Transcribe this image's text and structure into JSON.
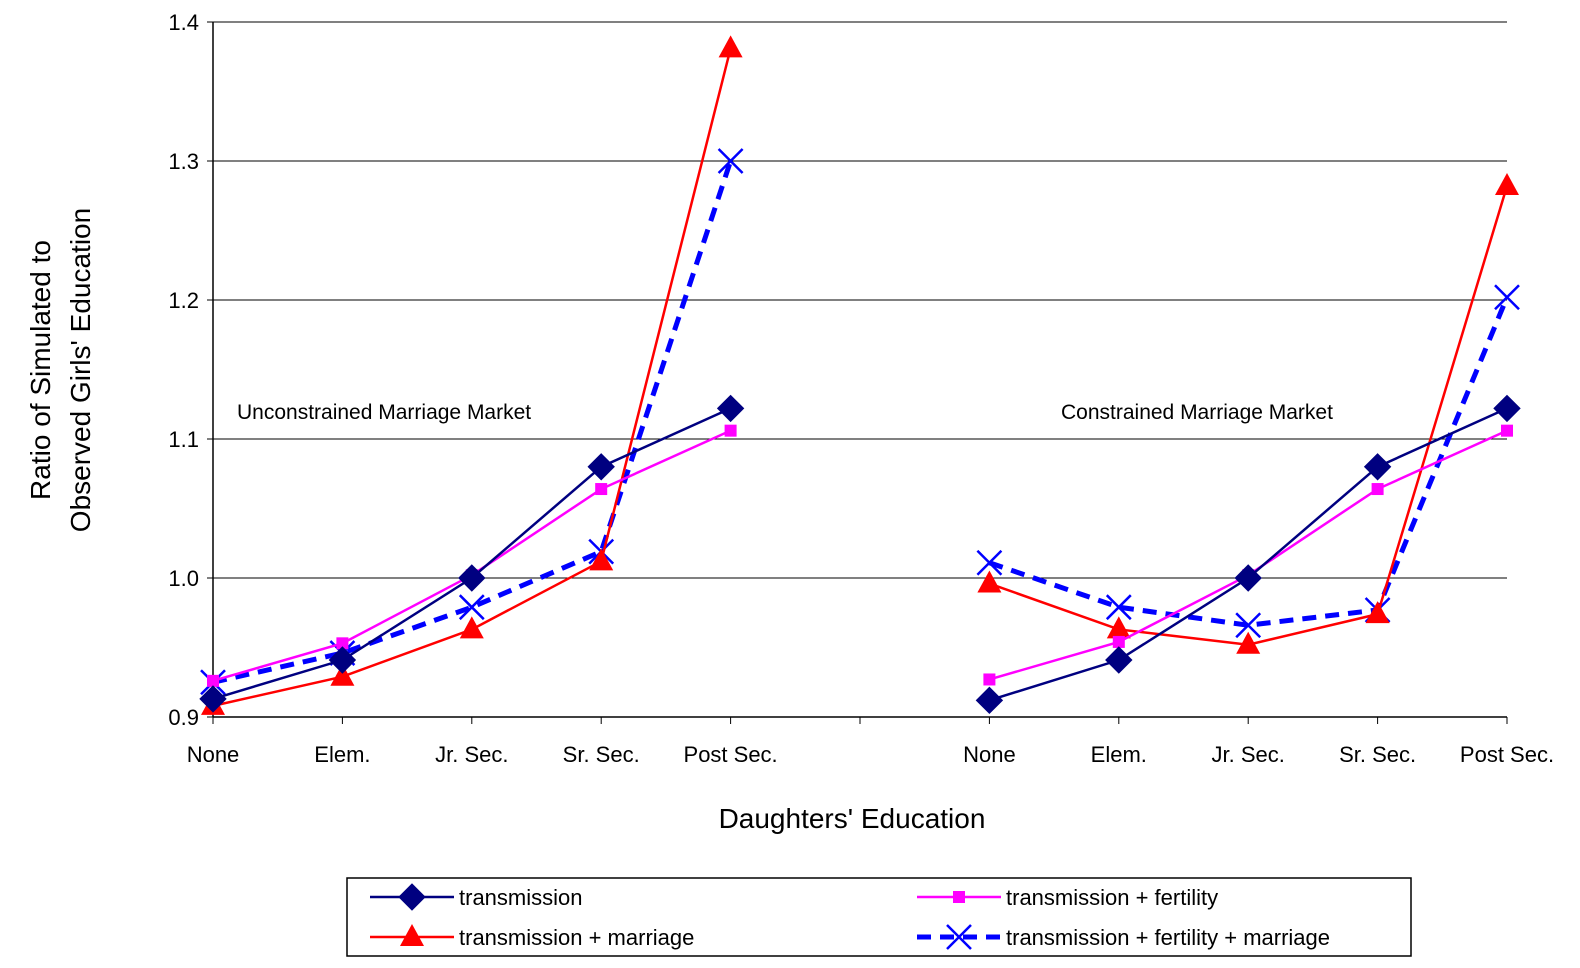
{
  "chart_data": {
    "type": "line",
    "xlabel": "Daughters' Education",
    "ylabel_lines": [
      "Ratio of Simulated to",
      "Observed Girls' Education"
    ],
    "ylim": [
      0.9,
      1.4
    ],
    "y_ticks": [
      "0.9",
      "1.0",
      "1.1",
      "1.2",
      "1.3",
      "1.4"
    ],
    "grid": true,
    "legend_position": "bottom",
    "annotations": [
      "Unconstrained Marriage Market",
      "Constrained Marriage Market"
    ],
    "panels": [
      {
        "name": "Unconstrained Marriage Market",
        "categories": [
          "None",
          "Elem.",
          "Jr. Sec.",
          "Sr. Sec.",
          "Post Sec."
        ],
        "series": [
          {
            "name": "transmission",
            "values": [
              0.913,
              0.941,
              1.0,
              1.08,
              1.122
            ]
          },
          {
            "name": "transmission + fertility",
            "values": [
              0.926,
              0.953,
              1.002,
              1.064,
              1.106
            ]
          },
          {
            "name": "transmission + marriage",
            "values": [
              0.908,
              0.929,
              0.963,
              1.012,
              1.381
            ]
          },
          {
            "name": "transmission + fertility + marriage",
            "values": [
              0.925,
              0.946,
              0.979,
              1.019,
              1.3
            ]
          }
        ]
      },
      {
        "name": "Constrained Marriage Market",
        "categories": [
          "None",
          "Elem.",
          "Jr. Sec.",
          "Sr. Sec.",
          "Post Sec."
        ],
        "series": [
          {
            "name": "transmission",
            "values": [
              0.912,
              0.941,
              1.0,
              1.08,
              1.122
            ]
          },
          {
            "name": "transmission + fertility",
            "values": [
              0.927,
              0.954,
              1.002,
              1.064,
              1.106
            ]
          },
          {
            "name": "transmission + marriage",
            "values": [
              0.996,
              0.963,
              0.952,
              0.974,
              1.282
            ]
          },
          {
            "name": "transmission + fertility + marriage",
            "values": [
              1.011,
              0.979,
              0.966,
              0.977,
              1.202
            ]
          }
        ]
      }
    ],
    "series_styles": [
      {
        "name": "transmission",
        "color": "#000080",
        "marker": "diamond",
        "dash": "solid"
      },
      {
        "name": "transmission + fertility",
        "color": "#ff00ff",
        "marker": "square",
        "dash": "solid"
      },
      {
        "name": "transmission + marriage",
        "color": "#ff0000",
        "marker": "triangle",
        "dash": "solid"
      },
      {
        "name": "transmission + fertility + marriage",
        "color": "#0000ff",
        "marker": "x",
        "dash": "dashed"
      }
    ]
  }
}
